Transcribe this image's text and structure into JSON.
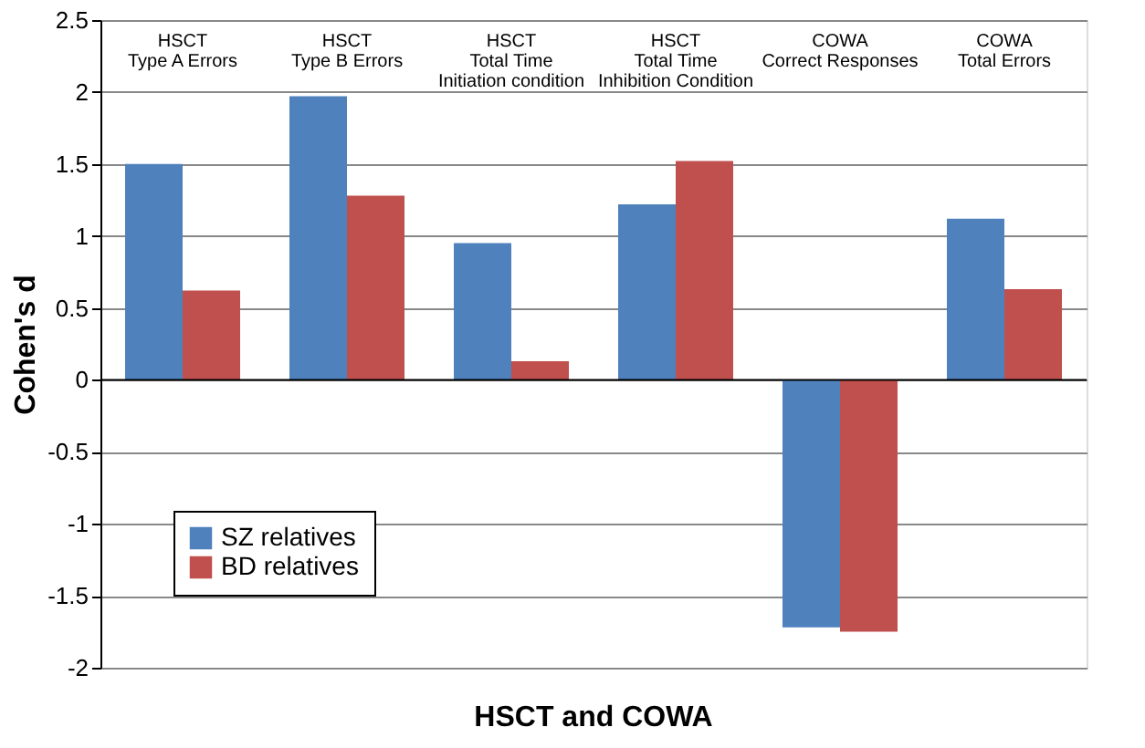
{
  "chart_data": {
    "type": "bar",
    "categories": [
      "HSCT\nType A Errors",
      "HSCT\nType B Errors",
      "HSCT\nTotal Time\nInitiation condition",
      "HSCT\nTotal Time\nInhibition Condition",
      "COWA\nCorrect Responses",
      "COWA\nTotal Errors"
    ],
    "series": [
      {
        "name": "SZ relatives",
        "color": "#4f81bd",
        "values": [
          1.5,
          1.97,
          0.95,
          1.22,
          -1.72,
          1.12
        ]
      },
      {
        "name": "BD relatives",
        "color": "#c0504d",
        "values": [
          0.62,
          1.28,
          0.13,
          1.52,
          -1.75,
          0.63
        ]
      }
    ],
    "xlabel": "HSCT and COWA",
    "ylabel": "Cohen's d",
    "ylim": [
      -2,
      2.5
    ],
    "yticks": [
      -2,
      -1.5,
      -1,
      -0.5,
      0,
      0.5,
      1,
      1.5,
      2,
      2.5
    ],
    "grid": "y",
    "legend": "bottom left"
  }
}
